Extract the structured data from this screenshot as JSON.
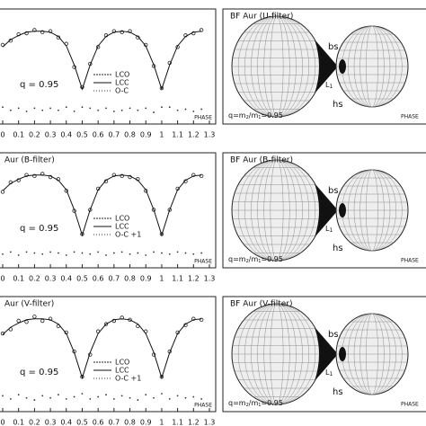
{
  "chart_data": [
    {
      "type": "line",
      "title": null,
      "annotation": "q = 0.95",
      "xlabel": "PHASE",
      "x": [
        0,
        0.05,
        0.1,
        0.15,
        0.2,
        0.25,
        0.3,
        0.35,
        0.4,
        0.45,
        0.5,
        0.55,
        0.6,
        0.65,
        0.7,
        0.75,
        0.8,
        0.85,
        0.9,
        0.95,
        1.0,
        1.05,
        1.1,
        1.15,
        1.2,
        1.25
      ],
      "series": [
        {
          "name": "LCO",
          "style": "points",
          "color": "#222",
          "values": [
            0.87,
            0.91,
            0.97,
            0.98,
            1.01,
            0.99,
            1.0,
            0.94,
            0.88,
            0.66,
            0.47,
            0.69,
            0.85,
            0.96,
            1.0,
            0.99,
            1.0,
            0.94,
            0.87,
            0.67,
            0.46,
            0.7,
            0.85,
            0.96,
            0.98,
            1.01
          ]
        },
        {
          "name": "LCC",
          "style": "line",
          "color": "#111",
          "values": [
            0.85,
            0.92,
            0.96,
            0.99,
            1.0,
            1.0,
            0.99,
            0.95,
            0.86,
            0.68,
            0.45,
            0.68,
            0.86,
            0.95,
            0.99,
            1.0,
            0.99,
            0.95,
            0.86,
            0.68,
            0.45,
            0.68,
            0.86,
            0.95,
            0.99,
            1.0
          ]
        },
        {
          "name": "O-C",
          "style": "dots",
          "color": "#333",
          "values": [
            0.28,
            0.25,
            0.27,
            0.24,
            0.27,
            0.25,
            0.27,
            0.25,
            0.28,
            0.24,
            0.28,
            0.27,
            0.25,
            0.27,
            0.24,
            0.25,
            0.27,
            0.25,
            0.27,
            0.23,
            0.28,
            0.28,
            0.25,
            0.26,
            0.24,
            0.26
          ]
        }
      ],
      "xlim": [
        0,
        1.3
      ],
      "xticks": [
        0,
        0.1,
        0.2,
        0.3,
        0.4,
        0.5,
        0.6,
        0.7,
        0.8,
        0.9,
        1,
        1.1,
        1.2,
        1.3
      ],
      "ylim": [
        0.12,
        1.21
      ]
    },
    {
      "type": "line",
      "title": "Aur (B-filter)",
      "annotation": "q = 0.95",
      "xlabel": "PHASE",
      "x": [
        0,
        0.05,
        0.1,
        0.15,
        0.2,
        0.25,
        0.3,
        0.35,
        0.4,
        0.45,
        0.5,
        0.55,
        0.6,
        0.65,
        0.7,
        0.75,
        0.8,
        0.85,
        0.9,
        0.95,
        1.0,
        1.05,
        1.1,
        1.15,
        1.2,
        1.25
      ],
      "series": [
        {
          "name": "LCO",
          "style": "points",
          "color": "#222",
          "values": [
            0.84,
            0.93,
            0.95,
            1.0,
            0.99,
            1.01,
            0.98,
            0.96,
            0.85,
            0.66,
            0.44,
            0.67,
            0.87,
            0.94,
            1.0,
            0.99,
            0.98,
            0.96,
            0.85,
            0.67,
            0.44,
            0.67,
            0.87,
            0.94,
            1.0,
            0.99
          ]
        },
        {
          "name": "LCC",
          "style": "line",
          "color": "#111",
          "values": [
            0.85,
            0.92,
            0.96,
            0.99,
            1.0,
            1.0,
            0.99,
            0.95,
            0.86,
            0.67,
            0.43,
            0.67,
            0.86,
            0.95,
            0.99,
            1.0,
            0.99,
            0.95,
            0.86,
            0.67,
            0.43,
            0.67,
            0.86,
            0.95,
            0.99,
            1.0
          ]
        },
        {
          "name": "O-C +1",
          "style": "dots",
          "color": "#333",
          "values": [
            0.25,
            0.27,
            0.24,
            0.27,
            0.26,
            0.25,
            0.27,
            0.26,
            0.24,
            0.27,
            0.26,
            0.25,
            0.27,
            0.24,
            0.26,
            0.27,
            0.25,
            0.26,
            0.24,
            0.27,
            0.26,
            0.25,
            0.27,
            0.26,
            0.25,
            0.26
          ]
        }
      ],
      "xlim": [
        0,
        1.3
      ],
      "xticks": [
        0,
        0.1,
        0.2,
        0.3,
        0.4,
        0.5,
        0.6,
        0.7,
        0.8,
        0.9,
        1,
        1.1,
        1.2,
        1.3
      ],
      "ylim": [
        0.12,
        1.21
      ]
    },
    {
      "type": "line",
      "title": "Aur (V-filter)",
      "annotation": "q = 0.95",
      "xlabel": "PHASE",
      "x": [
        0,
        0.05,
        0.1,
        0.15,
        0.2,
        0.25,
        0.3,
        0.35,
        0.4,
        0.45,
        0.5,
        0.55,
        0.6,
        0.65,
        0.7,
        0.75,
        0.8,
        0.85,
        0.9,
        0.95,
        1.0,
        1.05,
        1.1,
        1.15,
        1.2,
        1.25
      ],
      "series": [
        {
          "name": "LCO",
          "style": "points",
          "color": "#222",
          "values": [
            0.86,
            0.9,
            0.98,
            0.97,
            1.02,
            0.98,
            1.0,
            0.93,
            0.87,
            0.69,
            0.45,
            0.66,
            0.88,
            0.95,
            0.98,
            1.01,
            0.99,
            0.93,
            0.88,
            0.66,
            0.45,
            0.69,
            0.87,
            0.94,
            1.0,
            0.99
          ]
        },
        {
          "name": "LCC",
          "style": "line",
          "color": "#111",
          "values": [
            0.85,
            0.92,
            0.96,
            0.99,
            1.0,
            1.0,
            0.99,
            0.95,
            0.86,
            0.68,
            0.44,
            0.68,
            0.86,
            0.95,
            0.99,
            1.0,
            0.99,
            0.95,
            0.86,
            0.68,
            0.44,
            0.68,
            0.86,
            0.95,
            0.99,
            1.0
          ]
        },
        {
          "name": "O-C +1",
          "style": "dots",
          "color": "#333",
          "values": [
            0.27,
            0.24,
            0.28,
            0.25,
            0.23,
            0.27,
            0.25,
            0.28,
            0.24,
            0.26,
            0.29,
            0.24,
            0.26,
            0.28,
            0.24,
            0.27,
            0.25,
            0.23,
            0.28,
            0.25,
            0.29,
            0.24,
            0.27,
            0.25,
            0.26,
            0.24
          ]
        }
      ],
      "xlim": [
        0,
        1.3
      ],
      "xticks": [
        0,
        0.1,
        0.2,
        0.3,
        0.4,
        0.5,
        0.6,
        0.7,
        0.8,
        0.9,
        1,
        1.1,
        1.2,
        1.3
      ],
      "ylim": [
        0.12,
        1.21
      ]
    }
  ],
  "models": [
    {
      "title": "BF Aur (U-filter)",
      "bs": "bs",
      "hs": "hs",
      "lagrange": [
        "L",
        "1"
      ],
      "q_parts": [
        "q=m",
        "2",
        "/m",
        "1",
        "=0.95"
      ],
      "xlabel": "PHASE"
    },
    {
      "title": "BF Aur (B-filter)",
      "bs": "bs",
      "hs": "hs",
      "lagrange": [
        "L",
        "1"
      ],
      "q_parts": [
        "q=m",
        "2",
        "/m",
        "1",
        "=0.95"
      ],
      "xlabel": "PHASE"
    },
    {
      "title": "BF Aur (V-filter)",
      "bs": "bs",
      "hs": "hs",
      "lagrange": [
        "L",
        "1"
      ],
      "q_parts": [
        "q=m",
        "2",
        "/m",
        "1",
        "=0.95"
      ],
      "xlabel": "PHASE"
    }
  ]
}
